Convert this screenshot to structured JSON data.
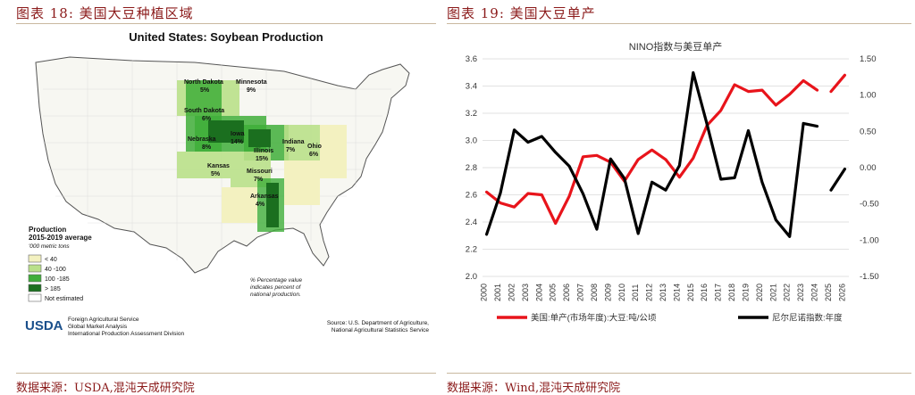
{
  "left_figure": {
    "caption": "图表 18:  美国大豆种植区域",
    "source": "数据来源：USDA,混沌天成研究院",
    "map_title": "United States: Soybean Production",
    "legend_title_1": "Production",
    "legend_title_2": "2015-2019 average",
    "legend_unit": "'000 metric tons",
    "legend_items": [
      {
        "label": "< 40",
        "color": "#f3f1c0"
      },
      {
        "label": "40 -100",
        "color": "#b9e08a"
      },
      {
        "label": "100 -185",
        "color": "#3fae3a"
      },
      {
        "label": "> 185",
        "color": "#1b6f1f"
      },
      {
        "label": "Not estimated",
        "color": "#ffffff"
      }
    ],
    "state_labels": [
      {
        "name": "North Dakota",
        "pct": "5%"
      },
      {
        "name": "Minnesota",
        "pct": "9%"
      },
      {
        "name": "South Dakota",
        "pct": "6%"
      },
      {
        "name": "Iowa",
        "pct": "14%"
      },
      {
        "name": "Nebraska",
        "pct": "8%"
      },
      {
        "name": "Illinois",
        "pct": "15%"
      },
      {
        "name": "Indiana",
        "pct": "7%"
      },
      {
        "name": "Ohio",
        "pct": "6%"
      },
      {
        "name": "Kansas",
        "pct": "5%"
      },
      {
        "name": "Missouri",
        "pct": "7%"
      },
      {
        "name": "Arkansas",
        "pct": "4%"
      }
    ],
    "note_lines": [
      "% Percentage value",
      "indicates percent of",
      "national production."
    ],
    "usda_logo": "USDA",
    "usda_lines": [
      "Foreign Agricultural Service",
      "Global Market Analysis",
      "International Production Assessment Division"
    ],
    "map_source_lines": [
      "Source: U.S. Department of Agriculture,",
      "National Agricultural Statistics Service"
    ]
  },
  "right_figure": {
    "caption": "图表 19:  美国大豆单产",
    "source": "数据来源：Wind,混沌天成研究院"
  },
  "chart_data": {
    "type": "line",
    "title": "NINO指数与美豆单产",
    "x": [
      2000,
      2001,
      2002,
      2003,
      2004,
      2005,
      2006,
      2007,
      2008,
      2009,
      2010,
      2011,
      2012,
      2013,
      2014,
      2015,
      2016,
      2017,
      2018,
      2019,
      2020,
      2021,
      2022,
      2023,
      2024,
      2025,
      2026
    ],
    "x_labels": [
      "2000",
      "2001",
      "2002",
      "2003",
      "2004",
      "2005",
      "2006",
      "2007",
      "2008",
      "2009",
      "2010",
      "2011",
      "2012",
      "2013",
      "2014",
      "2015",
      "2016",
      "2017",
      "2018",
      "2019",
      "2020",
      "2021",
      "2022",
      "2023",
      "2024",
      "2025",
      "2026"
    ],
    "left_axis": {
      "range": [
        2.0,
        3.6
      ],
      "ticks": [
        "2.0",
        "2.2",
        "2.4",
        "2.6",
        "2.8",
        "3.0",
        "3.2",
        "3.4",
        "3.6"
      ]
    },
    "right_axis": {
      "range": [
        -1.5,
        1.5
      ],
      "ticks": [
        "-1.50",
        "-1.00",
        "-0.50",
        "0.00",
        "0.50",
        "1.00",
        "1.50"
      ]
    },
    "series": [
      {
        "name": "美国:单产(市场年度):大豆:吨/公顷",
        "color": "#e8141b",
        "axis": "left",
        "x": [
          2000,
          2001,
          2002,
          2003,
          2004,
          2005,
          2006,
          2007,
          2008,
          2009,
          2010,
          2011,
          2012,
          2013,
          2014,
          2015,
          2016,
          2017,
          2018,
          2019,
          2020,
          2021,
          2022,
          2023,
          2024,
          2025,
          2026
        ],
        "values": [
          2.62,
          2.54,
          2.51,
          2.61,
          2.6,
          2.39,
          2.59,
          2.88,
          2.89,
          2.84,
          2.7,
          2.86,
          2.93,
          2.86,
          2.73,
          2.87,
          3.11,
          3.22,
          3.41,
          3.36,
          3.37,
          3.26,
          3.34,
          3.44,
          3.37,
          3.36,
          3.48
        ],
        "segments": [
          [
            0,
            24
          ],
          [
            25,
            26
          ]
        ]
      },
      {
        "name": "尼尔尼诺指数:年度",
        "color": "#000000",
        "axis": "right",
        "x": [
          2000,
          2001,
          2002,
          2003,
          2004,
          2005,
          2006,
          2007,
          2008,
          2009,
          2010,
          2011,
          2012,
          2013,
          2014,
          2015,
          2016,
          2017,
          2018,
          2019,
          2020,
          2021,
          2022,
          2023,
          2024,
          2025,
          2026
        ],
        "values": [
          -0.92,
          -0.35,
          0.52,
          0.35,
          0.43,
          0.21,
          0.02,
          -0.36,
          -0.85,
          0.12,
          -0.15,
          -0.91,
          -0.2,
          -0.31,
          0.03,
          1.31,
          0.6,
          -0.16,
          -0.14,
          0.51,
          -0.2,
          -0.72,
          -0.95,
          0.61,
          0.57,
          -0.31,
          -0.02
        ],
        "segments": [
          [
            0,
            24
          ],
          [
            25,
            26
          ]
        ]
      }
    ],
    "legend_position": "bottom"
  }
}
